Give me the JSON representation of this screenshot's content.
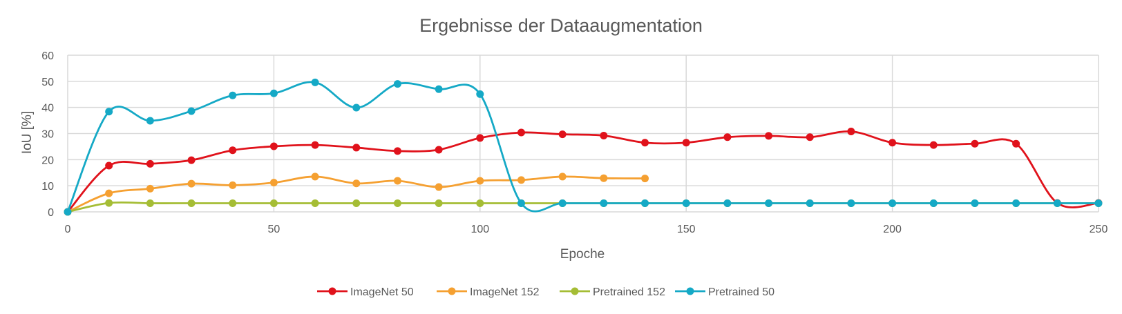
{
  "chart_data": {
    "type": "line",
    "title": "Ergebnisse der Dataaugmentation",
    "xlabel": "Epoche",
    "ylabel": "IoU [%]",
    "xlim": [
      0,
      250
    ],
    "ylim": [
      0,
      60
    ],
    "xticks": [
      0,
      50,
      100,
      150,
      200,
      250
    ],
    "yticks": [
      0,
      10,
      20,
      30,
      40,
      50,
      60
    ],
    "grid": true,
    "legend": "bottom",
    "series": [
      {
        "name": "ImageNet 50",
        "color": "#e0121b",
        "x": [
          0,
          10,
          20,
          30,
          40,
          50,
          60,
          70,
          80,
          90,
          100,
          110,
          120,
          130,
          140,
          150,
          160,
          170,
          180,
          190,
          200,
          210,
          220,
          230,
          240,
          250
        ],
        "y": [
          0,
          17.7,
          18.4,
          19.8,
          23.6,
          25.1,
          25.6,
          24.6,
          23.3,
          23.8,
          28.3,
          30.4,
          29.7,
          29.2,
          26.5,
          26.5,
          28.6,
          29.1,
          28.6,
          30.8,
          26.5,
          25.6,
          26.1,
          26.1,
          3.4,
          3.4
        ]
      },
      {
        "name": "ImageNet 152",
        "color": "#f5a031",
        "x": [
          0,
          10,
          20,
          30,
          40,
          50,
          60,
          70,
          80,
          90,
          100,
          110,
          120,
          130,
          140
        ],
        "y": [
          0,
          7.1,
          8.9,
          10.8,
          10.2,
          11.2,
          13.5,
          10.9,
          11.9,
          9.5,
          11.9,
          12.2,
          13.5,
          12.9,
          12.8
        ]
      },
      {
        "name": "Pretrained 152",
        "color": "#a5bd35",
        "x": [
          0,
          10,
          20,
          30,
          40,
          50,
          60,
          70,
          80,
          90,
          100,
          110,
          120,
          130,
          140,
          150,
          160,
          170,
          180,
          190,
          200,
          210,
          220,
          230,
          240,
          250
        ],
        "y": [
          0,
          3.4,
          3.3,
          3.3,
          3.3,
          3.3,
          3.3,
          3.3,
          3.3,
          3.3,
          3.3,
          3.3,
          3.3,
          3.3,
          3.3,
          3.3,
          3.3,
          3.3,
          3.3,
          3.3,
          3.3,
          3.3,
          3.3,
          3.3,
          3.3,
          3.3
        ]
      },
      {
        "name": "Pretrained 50",
        "color": "#15a9c6",
        "x": [
          0,
          10,
          20,
          30,
          40,
          50,
          60,
          70,
          80,
          90,
          100,
          110,
          120,
          130,
          140,
          150,
          160,
          170,
          180,
          190,
          200,
          210,
          220,
          230,
          240,
          250
        ],
        "y": [
          0,
          38.4,
          34.9,
          38.6,
          44.6,
          45.4,
          49.6,
          39.9,
          49.0,
          47.0,
          45.1,
          3.3,
          3.3,
          3.3,
          3.3,
          3.3,
          3.3,
          3.3,
          3.3,
          3.3,
          3.3,
          3.3,
          3.3,
          3.3,
          3.3,
          3.3
        ]
      }
    ]
  }
}
